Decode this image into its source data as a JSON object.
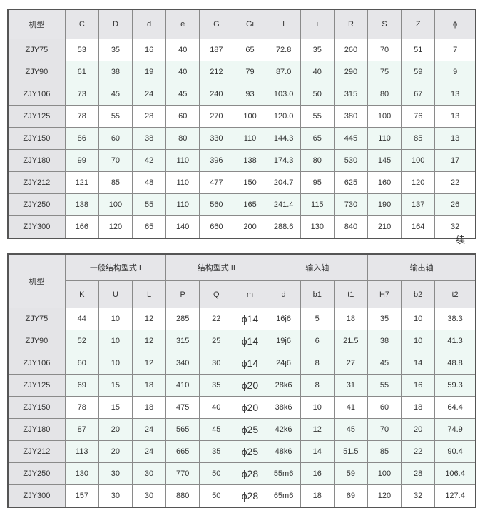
{
  "table1": {
    "columns": [
      "机型",
      "C",
      "D",
      "d",
      "e",
      "G",
      "Gi",
      "l",
      "i",
      "R",
      "S",
      "Z",
      "ϕ"
    ],
    "rows": [
      {
        "shaded": false,
        "cells": [
          "ZJY75",
          "53",
          "35",
          "16",
          "40",
          "187",
          "65",
          "72.8",
          "35",
          "260",
          "70",
          "51",
          "7"
        ]
      },
      {
        "shaded": true,
        "cells": [
          "ZJY90",
          "61",
          "38",
          "19",
          "40",
          "212",
          "79",
          "87.0",
          "40",
          "290",
          "75",
          "59",
          "9"
        ]
      },
      {
        "shaded": true,
        "cells": [
          "ZJY106",
          "73",
          "45",
          "24",
          "45",
          "240",
          "93",
          "103.0",
          "50",
          "315",
          "80",
          "67",
          "13"
        ]
      },
      {
        "shaded": false,
        "cells": [
          "ZJY125",
          "78",
          "55",
          "28",
          "60",
          "270",
          "100",
          "120.0",
          "55",
          "380",
          "100",
          "76",
          "13"
        ]
      },
      {
        "shaded": true,
        "cells": [
          "ZJY150",
          "86",
          "60",
          "38",
          "80",
          "330",
          "110",
          "144.3",
          "65",
          "445",
          "110",
          "85",
          "13"
        ]
      },
      {
        "shaded": true,
        "cells": [
          "ZJY180",
          "99",
          "70",
          "42",
          "110",
          "396",
          "138",
          "174.3",
          "80",
          "530",
          "145",
          "100",
          "17"
        ]
      },
      {
        "shaded": false,
        "cells": [
          "ZJY212",
          "121",
          "85",
          "48",
          "110",
          "477",
          "150",
          "204.7",
          "95",
          "625",
          "160",
          "120",
          "22"
        ]
      },
      {
        "shaded": true,
        "cells": [
          "ZJY250",
          "138",
          "100",
          "55",
          "110",
          "560",
          "165",
          "241.4",
          "115",
          "730",
          "190",
          "137",
          "26"
        ]
      },
      {
        "shaded": false,
        "cells": [
          "ZJY300",
          "166",
          "120",
          "65",
          "140",
          "660",
          "200",
          "288.6",
          "130",
          "840",
          "210",
          "164",
          "32"
        ]
      }
    ]
  },
  "continued_label": "续",
  "table2": {
    "model_header": "机型",
    "groups": [
      {
        "label": "一般结构型式 I",
        "span": 3
      },
      {
        "label": "结构型式 II",
        "span": 3
      },
      {
        "label": "输入轴",
        "span": 3
      },
      {
        "label": "输出轴",
        "span": 3
      }
    ],
    "columns": [
      "K",
      "U",
      "L",
      "P",
      "Q",
      "m",
      "d",
      "b1",
      "t1",
      "H7",
      "b2",
      "t2"
    ],
    "rows": [
      {
        "shaded": false,
        "cells": [
          "ZJY75",
          "44",
          "10",
          "12",
          "285",
          "22",
          "ϕ14",
          "16j6",
          "5",
          "18",
          "35",
          "10",
          "38.3"
        ]
      },
      {
        "shaded": true,
        "cells": [
          "ZJY90",
          "52",
          "10",
          "12",
          "315",
          "25",
          "ϕ14",
          "19j6",
          "6",
          "21.5",
          "38",
          "10",
          "41.3"
        ]
      },
      {
        "shaded": true,
        "cells": [
          "ZJY106",
          "60",
          "10",
          "12",
          "340",
          "30",
          "ϕ14",
          "24j6",
          "8",
          "27",
          "45",
          "14",
          "48.8"
        ]
      },
      {
        "shaded": true,
        "cells": [
          "ZJY125",
          "69",
          "15",
          "18",
          "410",
          "35",
          "ϕ20",
          "28k6",
          "8",
          "31",
          "55",
          "16",
          "59.3"
        ]
      },
      {
        "shaded": false,
        "cells": [
          "ZJY150",
          "78",
          "15",
          "18",
          "475",
          "40",
          "ϕ20",
          "38k6",
          "10",
          "41",
          "60",
          "18",
          "64.4"
        ]
      },
      {
        "shaded": true,
        "cells": [
          "ZJY180",
          "87",
          "20",
          "24",
          "565",
          "45",
          "ϕ25",
          "42k6",
          "12",
          "45",
          "70",
          "20",
          "74.9"
        ]
      },
      {
        "shaded": true,
        "cells": [
          "ZJY212",
          "113",
          "20",
          "24",
          "665",
          "35",
          "ϕ25",
          "48k6",
          "14",
          "51.5",
          "85",
          "22",
          "90.4"
        ]
      },
      {
        "shaded": true,
        "cells": [
          "ZJY250",
          "130",
          "30",
          "30",
          "770",
          "50",
          "ϕ28",
          "55m6",
          "16",
          "59",
          "100",
          "28",
          "106.4"
        ]
      },
      {
        "shaded": false,
        "cells": [
          "ZJY300",
          "157",
          "30",
          "30",
          "880",
          "50",
          "ϕ28",
          "65m6",
          "18",
          "69",
          "120",
          "32",
          "127.4"
        ]
      }
    ]
  }
}
